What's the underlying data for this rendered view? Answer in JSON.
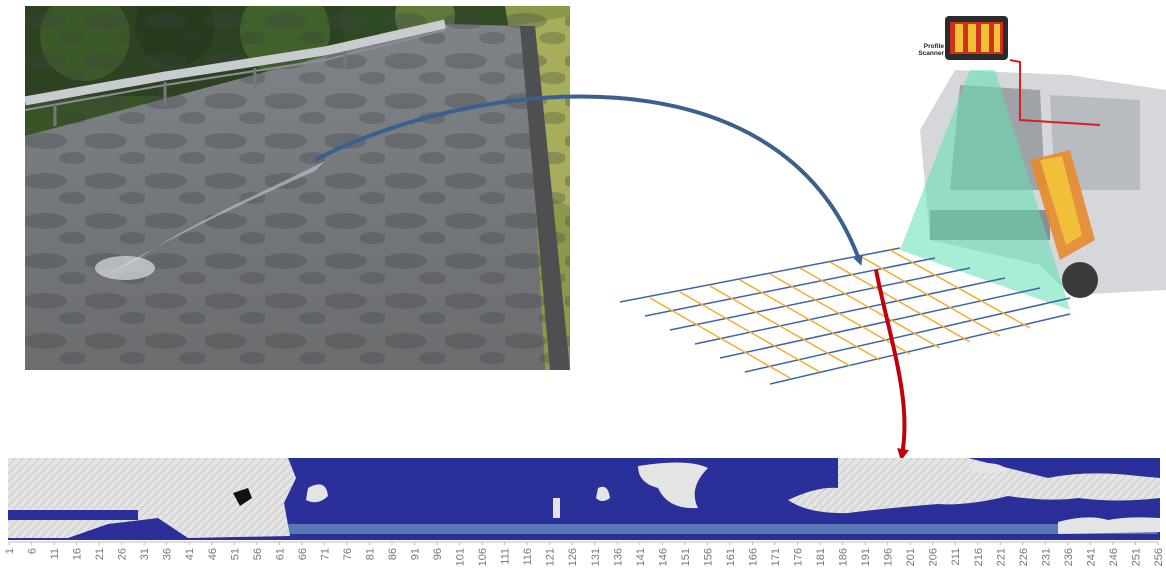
{
  "scanner_label": "Profile\nScanner",
  "axis": {
    "start": 1,
    "step": 5,
    "count": 52
  },
  "colors": {
    "road_arrow": "#3b5f8f",
    "profile_arrow": "#c0000b",
    "grid_blue": "#3c64a8",
    "grid_yellow": "#f4ad2a",
    "beam": "#5ee0b0",
    "strip_blue": "#2b2f9a",
    "strip_white": "#e4e4e4"
  }
}
